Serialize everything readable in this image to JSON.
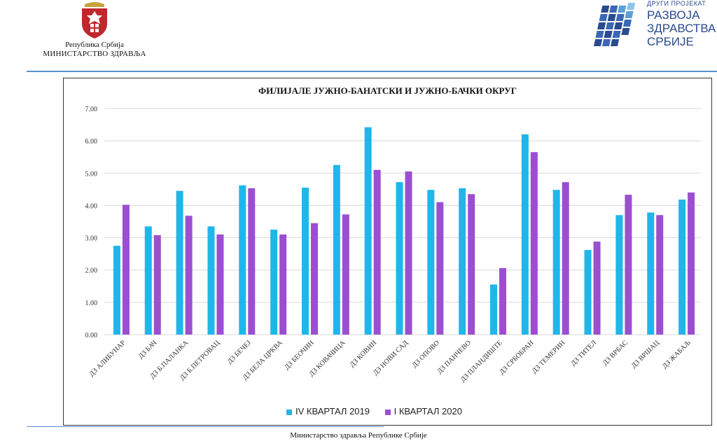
{
  "header": {
    "ministry_line1": "Република Србија",
    "ministry_line2": "МИНИСТАРСТВО ЗДРАВЉА",
    "project_small": "ДРУГИ ПРОЈЕКАТ",
    "project_line1": "РАЗВОЈА",
    "project_line2": "ЗДРАВСТВА",
    "project_line3": "СРБИЈЕ"
  },
  "footer": {
    "text": "Министарство здравља Републике Србије"
  },
  "colors": {
    "series1": "#1fb6ea",
    "series2": "#9b4fd0",
    "grid": "#d9d9d9",
    "axis_text": "#333333"
  },
  "chart_data": {
    "type": "bar",
    "title": "ФИЛИЈАЛЕ ЈУЖНО-БАНАТСКИ И ЈУЖНО-БАЧКИ ОКРУГ",
    "xlabel": "",
    "ylabel": "",
    "ylim": [
      0,
      7
    ],
    "yticks": [
      "0.00",
      "1.00",
      "2.00",
      "3.00",
      "4.00",
      "5.00",
      "6.00",
      "7.00"
    ],
    "grid": true,
    "legend_position": "bottom",
    "categories": [
      "ДЗ АЛИБУНАР",
      "ДЗ БАЧ",
      "ДЗ Б.ПАЛАНКА",
      "ДЗ Б.ПЕТРОВАЦ",
      "ДЗ БЕЧЕЈ",
      "ДЗ БЕЛА ЦРКВА",
      "ДЗ БЕОЧИН",
      "ДЗ КОВАЧИЦА",
      "ДЗ КОВИН",
      "ДЗ НОВИ САД",
      "ДЗ ОПОВО",
      "ДЗ ПАНЧЕВО",
      "ДЗ ПЛАНДИШТЕ",
      "ДЗ СРБОБРАН",
      "ДЗ ТЕМЕРИН",
      "ДЗ ТИТЕЛ",
      "ДЗ ВРБАС",
      "ДЗ ВРШАЦ",
      "ДЗ ЖАБАЉ"
    ],
    "series": [
      {
        "name": "IV КВАРТАЛ 2019",
        "values": [
          2.75,
          3.35,
          4.45,
          3.35,
          4.62,
          3.25,
          4.55,
          5.25,
          6.42,
          4.72,
          4.48,
          4.53,
          1.55,
          6.2,
          4.48,
          2.62,
          3.7,
          3.78,
          4.18
        ]
      },
      {
        "name": "I КВАРТАЛ 2020",
        "values": [
          4.02,
          3.08,
          3.68,
          3.1,
          4.53,
          3.1,
          3.45,
          3.72,
          5.1,
          5.05,
          4.1,
          4.35,
          2.06,
          5.65,
          4.72,
          2.88,
          4.33,
          3.7,
          4.4
        ]
      }
    ]
  }
}
